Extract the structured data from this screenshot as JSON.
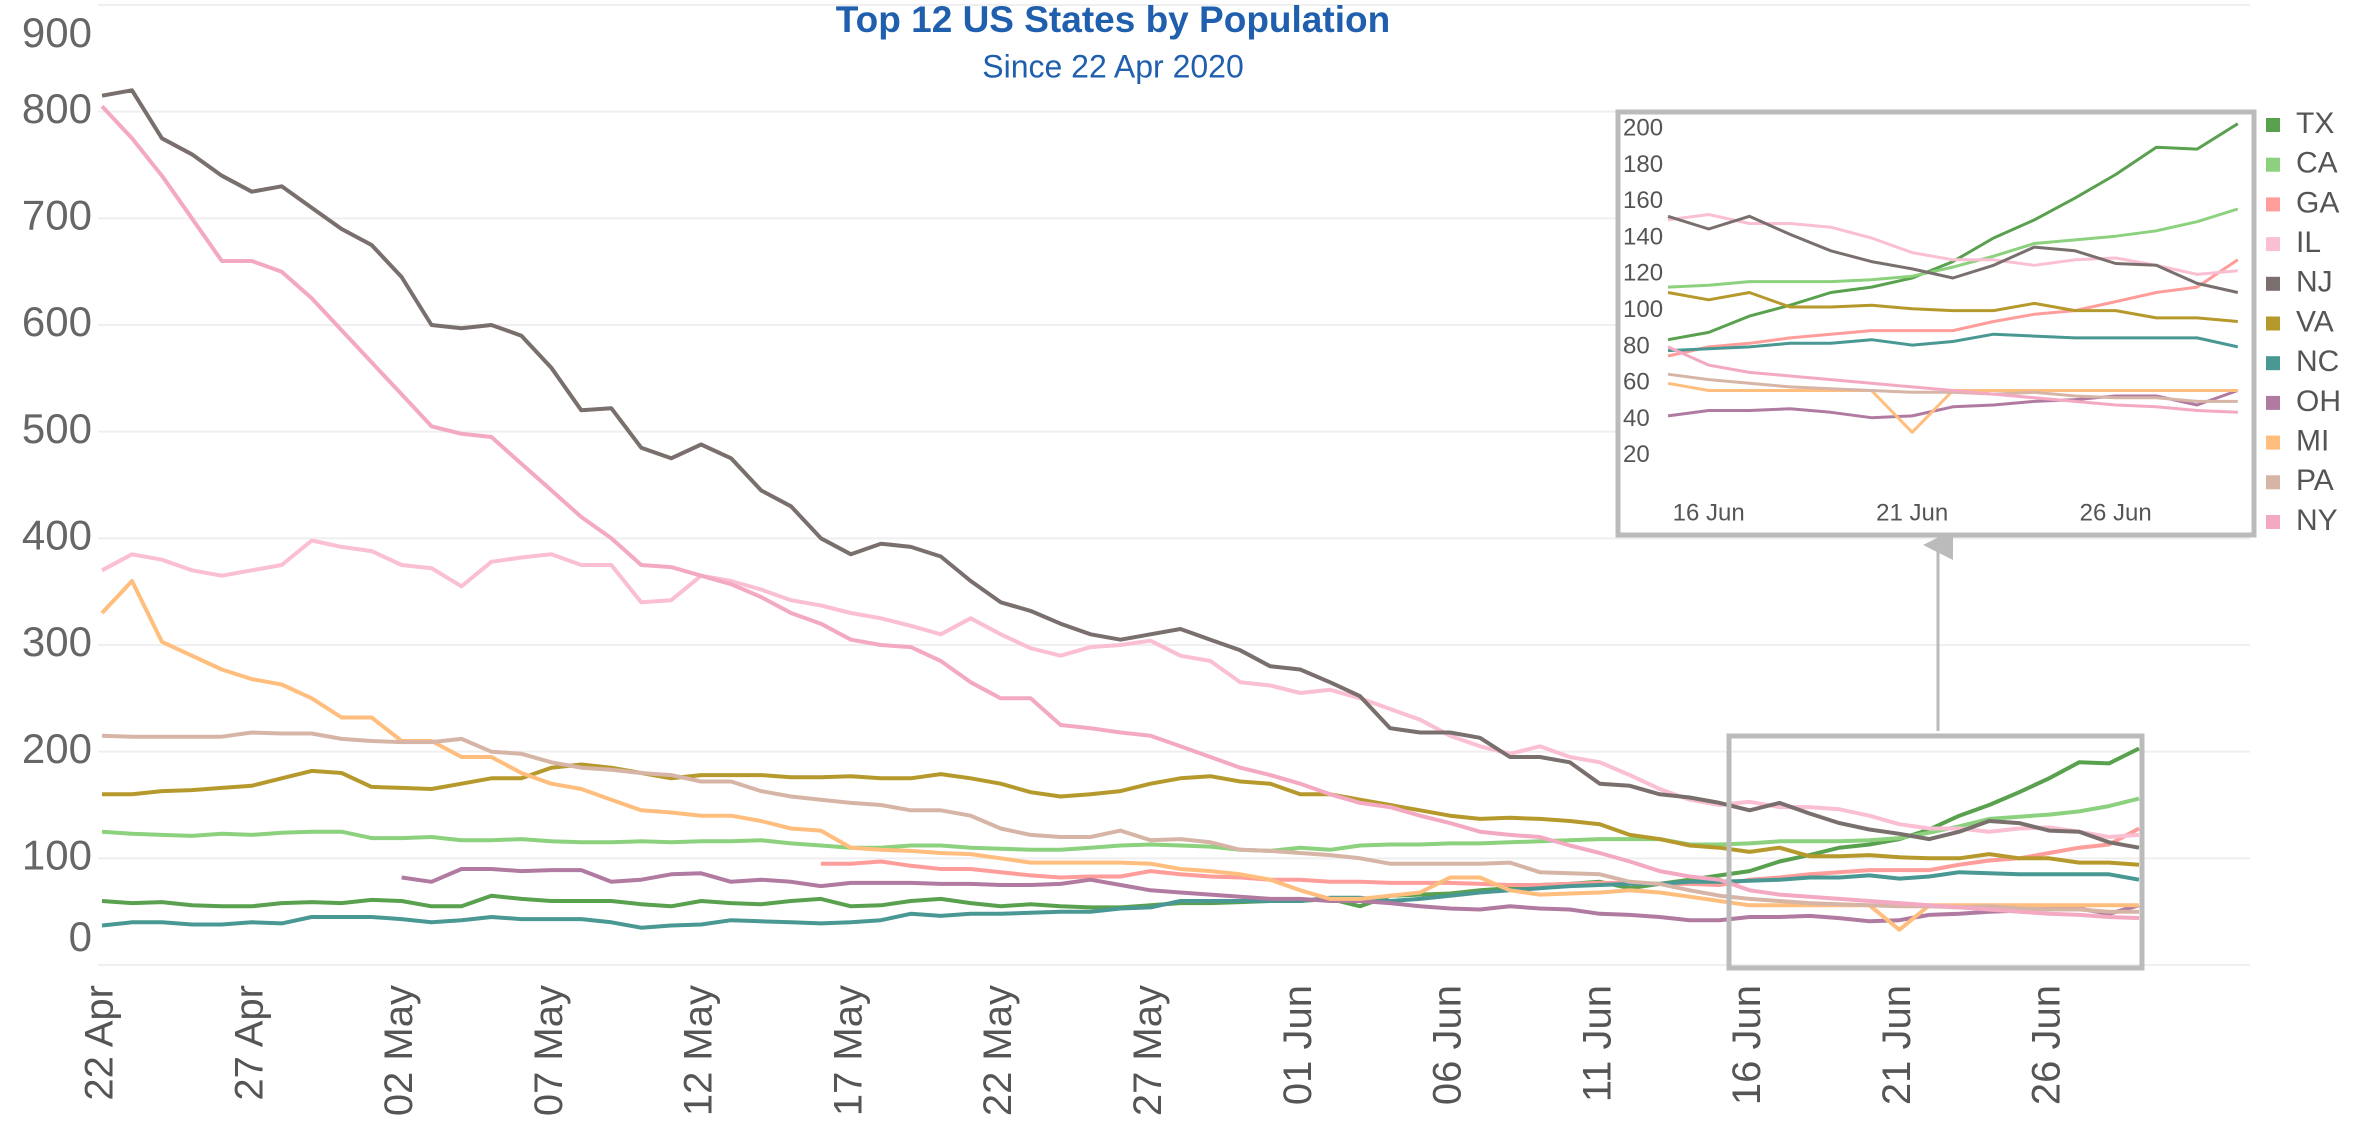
{
  "chart_data": {
    "type": "line",
    "title": "Top 12 US States by Population",
    "subtitle": "Since 22 Apr 2020",
    "categories": [
      "22 Apr",
      null,
      null,
      null,
      null,
      "27 Apr",
      null,
      null,
      null,
      null,
      "02 May",
      null,
      null,
      null,
      null,
      "07 May",
      null,
      null,
      null,
      null,
      "12 May",
      null,
      null,
      null,
      null,
      "17 May",
      null,
      null,
      null,
      null,
      "22 May",
      null,
      null,
      null,
      null,
      "27 May",
      null,
      null,
      null,
      null,
      "01 Jun",
      null,
      null,
      null,
      null,
      "06 Jun",
      null,
      null,
      null,
      null,
      "11 Jun",
      null,
      null,
      null,
      null,
      "16 Jun",
      null,
      null,
      null,
      null,
      "21 Jun",
      null,
      null,
      null,
      null,
      "26 Jun",
      null,
      null,
      null
    ],
    "ylim": [
      0,
      900
    ],
    "yticks": [
      0,
      100,
      200,
      300,
      400,
      500,
      600,
      700,
      800,
      900
    ],
    "grid": true,
    "legend": "right",
    "series": [
      {
        "name": "TX",
        "color": "#59a14f",
        "values": [
          60,
          58,
          59,
          56,
          55,
          55,
          58,
          59,
          58,
          61,
          60,
          55,
          55,
          65,
          62,
          60,
          60,
          60,
          57,
          55,
          60,
          58,
          57,
          60,
          62,
          55,
          56,
          60,
          62,
          58,
          55,
          57,
          55,
          54,
          54,
          56,
          58,
          58,
          59,
          60,
          60,
          62,
          55,
          65,
          66,
          67,
          70,
          72,
          75,
          76,
          78,
          72,
          76,
          80,
          84,
          88,
          97,
          103,
          110,
          113,
          118,
          127,
          140,
          150,
          162,
          175,
          190,
          189,
          203
        ]
      },
      {
        "name": "CA",
        "color": "#8cd17d",
        "values": [
          125,
          123,
          122,
          121,
          123,
          122,
          124,
          125,
          125,
          119,
          119,
          120,
          117,
          117,
          118,
          116,
          115,
          115,
          116,
          115,
          116,
          116,
          117,
          114,
          112,
          110,
          110,
          112,
          112,
          110,
          109,
          108,
          108,
          110,
          112,
          113,
          112,
          111,
          108,
          107,
          110,
          108,
          112,
          113,
          113,
          114,
          114,
          115,
          116,
          117,
          118,
          118,
          118,
          113,
          113,
          114,
          116,
          116,
          116,
          117,
          119,
          124,
          130,
          137,
          139,
          141,
          144,
          149,
          156
        ]
      },
      {
        "name": "GA",
        "color": "#ff9d9a",
        "values": [
          null,
          null,
          null,
          null,
          null,
          null,
          null,
          null,
          null,
          null,
          null,
          null,
          null,
          null,
          null,
          null,
          null,
          null,
          null,
          null,
          null,
          null,
          null,
          null,
          95,
          95,
          97,
          93,
          90,
          90,
          87,
          84,
          82,
          83,
          83,
          88,
          85,
          83,
          82,
          80,
          80,
          78,
          78,
          77,
          77,
          77,
          76,
          75,
          75,
          76,
          77,
          77,
          76,
          76,
          75,
          80,
          82,
          85,
          87,
          89,
          89,
          89,
          94,
          98,
          100,
          105,
          110,
          113,
          128
        ]
      },
      {
        "name": "IL",
        "color": "#fabfd2",
        "values": [
          370,
          385,
          380,
          370,
          365,
          370,
          375,
          398,
          392,
          388,
          375,
          372,
          355,
          378,
          382,
          385,
          375,
          375,
          340,
          342,
          365,
          360,
          352,
          342,
          337,
          330,
          325,
          318,
          310,
          325,
          310,
          297,
          290,
          298,
          300,
          304,
          290,
          285,
          265,
          262,
          255,
          258,
          250,
          240,
          230,
          215,
          205,
          198,
          205,
          195,
          190,
          178,
          165,
          155,
          150,
          153,
          148,
          148,
          146,
          140,
          132,
          128,
          128,
          125,
          128,
          129,
          125,
          120,
          122
        ]
      },
      {
        "name": "NJ",
        "color": "#79706e",
        "values": [
          815,
          820,
          775,
          760,
          740,
          725,
          730,
          710,
          690,
          675,
          645,
          600,
          597,
          600,
          590,
          560,
          520,
          522,
          485,
          475,
          488,
          475,
          445,
          430,
          400,
          385,
          395,
          392,
          383,
          360,
          340,
          332,
          320,
          310,
          305,
          310,
          315,
          305,
          295,
          280,
          277,
          265,
          252,
          222,
          218,
          218,
          213,
          195,
          195,
          190,
          170,
          168,
          160,
          157,
          152,
          145,
          152,
          142,
          133,
          127,
          123,
          118,
          125,
          135,
          133,
          126,
          125,
          115,
          110
        ]
      },
      {
        "name": "VA",
        "color": "#b6992d",
        "values": [
          160,
          160,
          163,
          164,
          166,
          168,
          175,
          182,
          180,
          167,
          166,
          165,
          170,
          175,
          175,
          185,
          188,
          185,
          180,
          175,
          178,
          178,
          178,
          176,
          176,
          177,
          175,
          175,
          179,
          175,
          170,
          162,
          158,
          160,
          163,
          170,
          175,
          177,
          172,
          170,
          160,
          160,
          155,
          150,
          145,
          140,
          137,
          138,
          137,
          135,
          132,
          122,
          118,
          112,
          110,
          106,
          110,
          102,
          102,
          103,
          101,
          100,
          100,
          104,
          100,
          100,
          96,
          96,
          94
        ]
      },
      {
        "name": "NC",
        "color": "#499894",
        "values": [
          37,
          40,
          40,
          38,
          38,
          40,
          39,
          45,
          45,
          45,
          43,
          40,
          42,
          45,
          43,
          43,
          43,
          40,
          35,
          37,
          38,
          42,
          41,
          40,
          39,
          40,
          42,
          48,
          46,
          48,
          48,
          49,
          50,
          50,
          53,
          54,
          60,
          60,
          60,
          60,
          60,
          63,
          63,
          60,
          62,
          65,
          68,
          70,
          72,
          74,
          75,
          76,
          76,
          78,
          78,
          79,
          80,
          82,
          82,
          84,
          81,
          83,
          87,
          86,
          85,
          85,
          85,
          85,
          80
        ]
      },
      {
        "name": "OH",
        "color": "#b07aa1",
        "values": [
          null,
          null,
          null,
          null,
          null,
          null,
          null,
          null,
          null,
          null,
          82,
          78,
          90,
          90,
          88,
          89,
          89,
          78,
          80,
          85,
          86,
          78,
          80,
          78,
          74,
          77,
          77,
          77,
          76,
          76,
          75,
          75,
          76,
          80,
          75,
          70,
          68,
          66,
          64,
          62,
          62,
          60,
          60,
          58,
          55,
          53,
          52,
          55,
          53,
          52,
          48,
          47,
          45,
          42,
          42,
          45,
          45,
          46,
          44,
          41,
          42,
          47,
          48,
          50,
          51,
          53,
          53,
          48,
          56
        ]
      },
      {
        "name": "MI",
        "color": "#ffbe7d",
        "values": [
          330,
          360,
          303,
          290,
          277,
          268,
          263,
          250,
          232,
          232,
          210,
          210,
          195,
          195,
          180,
          170,
          165,
          155,
          145,
          143,
          140,
          140,
          135,
          128,
          126,
          110,
          108,
          107,
          105,
          104,
          100,
          96,
          96,
          96,
          96,
          95,
          90,
          88,
          85,
          80,
          70,
          62,
          62,
          65,
          68,
          82,
          82,
          70,
          66,
          67,
          68,
          70,
          68,
          64,
          60,
          56,
          56,
          56,
          56,
          56,
          33,
          56,
          56,
          56,
          56,
          56,
          56,
          56,
          56
        ]
      },
      {
        "name": "PA",
        "color": "#d7b5a6",
        "values": [
          215,
          214,
          214,
          214,
          214,
          218,
          217,
          217,
          212,
          210,
          209,
          209,
          212,
          200,
          198,
          190,
          185,
          183,
          180,
          178,
          172,
          172,
          163,
          158,
          155,
          152,
          150,
          145,
          145,
          140,
          128,
          122,
          120,
          120,
          126,
          117,
          118,
          115,
          108,
          107,
          105,
          103,
          100,
          95,
          95,
          95,
          95,
          96,
          87,
          86,
          85,
          78,
          76,
          70,
          65,
          62,
          60,
          58,
          57,
          56,
          55,
          55,
          54,
          55,
          53,
          52,
          52,
          50,
          50
        ]
      },
      {
        "name": "NY",
        "color": "#f4a9c2",
        "values": [
          805,
          775,
          740,
          700,
          660,
          660,
          650,
          625,
          595,
          565,
          535,
          505,
          498,
          495,
          470,
          445,
          420,
          400,
          375,
          373,
          365,
          357,
          345,
          330,
          320,
          305,
          300,
          298,
          285,
          265,
          250,
          250,
          225,
          222,
          218,
          215,
          205,
          195,
          185,
          178,
          170,
          160,
          152,
          148,
          140,
          133,
          125,
          122,
          120,
          112,
          105,
          97,
          88,
          83,
          80,
          70,
          66,
          64,
          62,
          60,
          58,
          56,
          54,
          52,
          50,
          48,
          47,
          45,
          44
        ]
      }
    ],
    "inset": {
      "xlim": [
        54,
        68.3
      ],
      "ylim": [
        10,
        210
      ],
      "xticks": [
        {
          "value": 55,
          "label": "16 Jun"
        },
        {
          "value": 60,
          "label": "21 Jun"
        },
        {
          "value": 65,
          "label": "26 Jun"
        }
      ],
      "yticks": [
        20,
        40,
        60,
        80,
        100,
        120,
        140,
        160,
        180,
        200
      ]
    }
  }
}
